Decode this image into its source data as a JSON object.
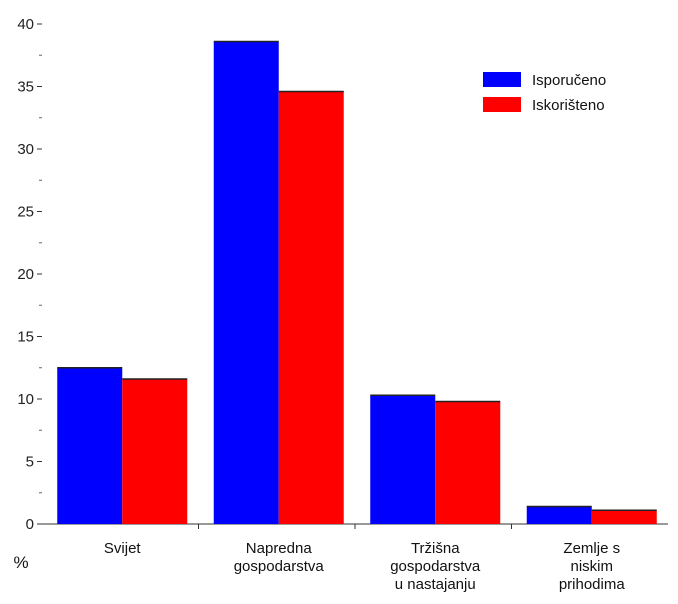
{
  "chart_data": {
    "type": "bar",
    "categories": [
      [
        "Svijet"
      ],
      [
        "Napredna",
        "gospodarstva"
      ],
      [
        "Tržišna",
        "gospodarstva",
        "u nastajanju"
      ],
      [
        "Zemlje s",
        "niskim",
        "prihodima"
      ]
    ],
    "series": [
      {
        "name": "Isporučeno",
        "color": "#0000ff",
        "values": [
          12.5,
          38.6,
          10.3,
          1.4
        ]
      },
      {
        "name": "Iskorišteno",
        "color": "#ff0000",
        "values": [
          11.6,
          34.6,
          9.8,
          1.1
        ]
      }
    ],
    "ylim": [
      0,
      40
    ],
    "yticks": [
      "0",
      "5",
      "10",
      "15",
      "20",
      "25",
      "30",
      "35",
      "40"
    ],
    "unit_label": "%",
    "legend_position": "top-right",
    "grid": false
  }
}
